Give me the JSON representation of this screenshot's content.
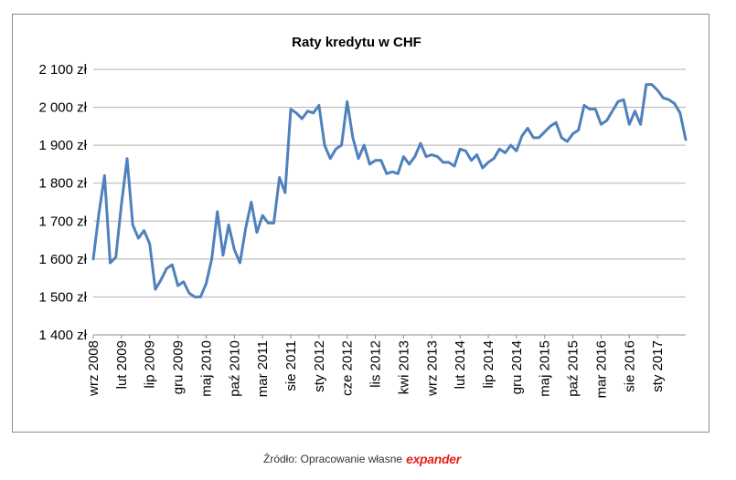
{
  "source": {
    "text": "Źródło: Opracowanie własne",
    "logo": "expander"
  },
  "colors": {
    "line": "#4f81bd",
    "grid": "#b0b0b0",
    "logo": "#e2231a"
  },
  "chart_data": {
    "type": "line",
    "title": "Raty kredytu w CHF",
    "xlabel": "",
    "ylabel": "",
    "ylim": [
      1400,
      2100
    ],
    "yticks": [
      1400,
      1500,
      1600,
      1700,
      1800,
      1900,
      2000,
      2100
    ],
    "ytick_labels": [
      "1 400 zł",
      "1 500 zł",
      "1 600 zł",
      "1 700 zł",
      "1 800 zł",
      "1 900 zł",
      "2 000 zł",
      "2 100 zł"
    ],
    "grid": "horizontal",
    "legend": "none",
    "x_tick_labels": [
      "wrz 2008",
      "lut 2009",
      "lip 2009",
      "gru 2009",
      "maj 2010",
      "paź 2010",
      "mar 2011",
      "sie 2011",
      "sty 2012",
      "cze 2012",
      "lis 2012",
      "kwi 2013",
      "wrz 2013",
      "lut 2014",
      "lip 2014",
      "gru 2014",
      "maj 2015",
      "paź 2015",
      "mar 2016",
      "sie 2016",
      "sty 2017"
    ],
    "series": [
      {
        "values": [
          1600,
          1720,
          1820,
          1590,
          1605,
          1745,
          1865,
          1690,
          1655,
          1675,
          1640,
          1520,
          1545,
          1575,
          1585,
          1530,
          1540,
          1510,
          1500,
          1500,
          1535,
          1600,
          1725,
          1610,
          1690,
          1625,
          1590,
          1680,
          1750,
          1670,
          1715,
          1695,
          1695,
          1815,
          1775,
          1995,
          1985,
          1970,
          1990,
          1985,
          2005,
          1900,
          1865,
          1890,
          1900,
          2015,
          1920,
          1865,
          1900,
          1850,
          1860,
          1860,
          1825,
          1830,
          1825,
          1870,
          1850,
          1870,
          1905,
          1870,
          1875,
          1870,
          1855,
          1855,
          1845,
          1890,
          1885,
          1860,
          1875,
          1840,
          1855,
          1865,
          1890,
          1880,
          1900,
          1885,
          1925,
          1945,
          1920,
          1920,
          1935,
          1950,
          1960,
          1920,
          1910,
          1930,
          1940,
          2005,
          1995,
          1995,
          1955,
          1965,
          1990,
          2015,
          2020,
          1955,
          1990,
          1955,
          2060,
          2060,
          2045,
          2025,
          2020,
          2010,
          1985,
          1915
        ]
      }
    ]
  }
}
